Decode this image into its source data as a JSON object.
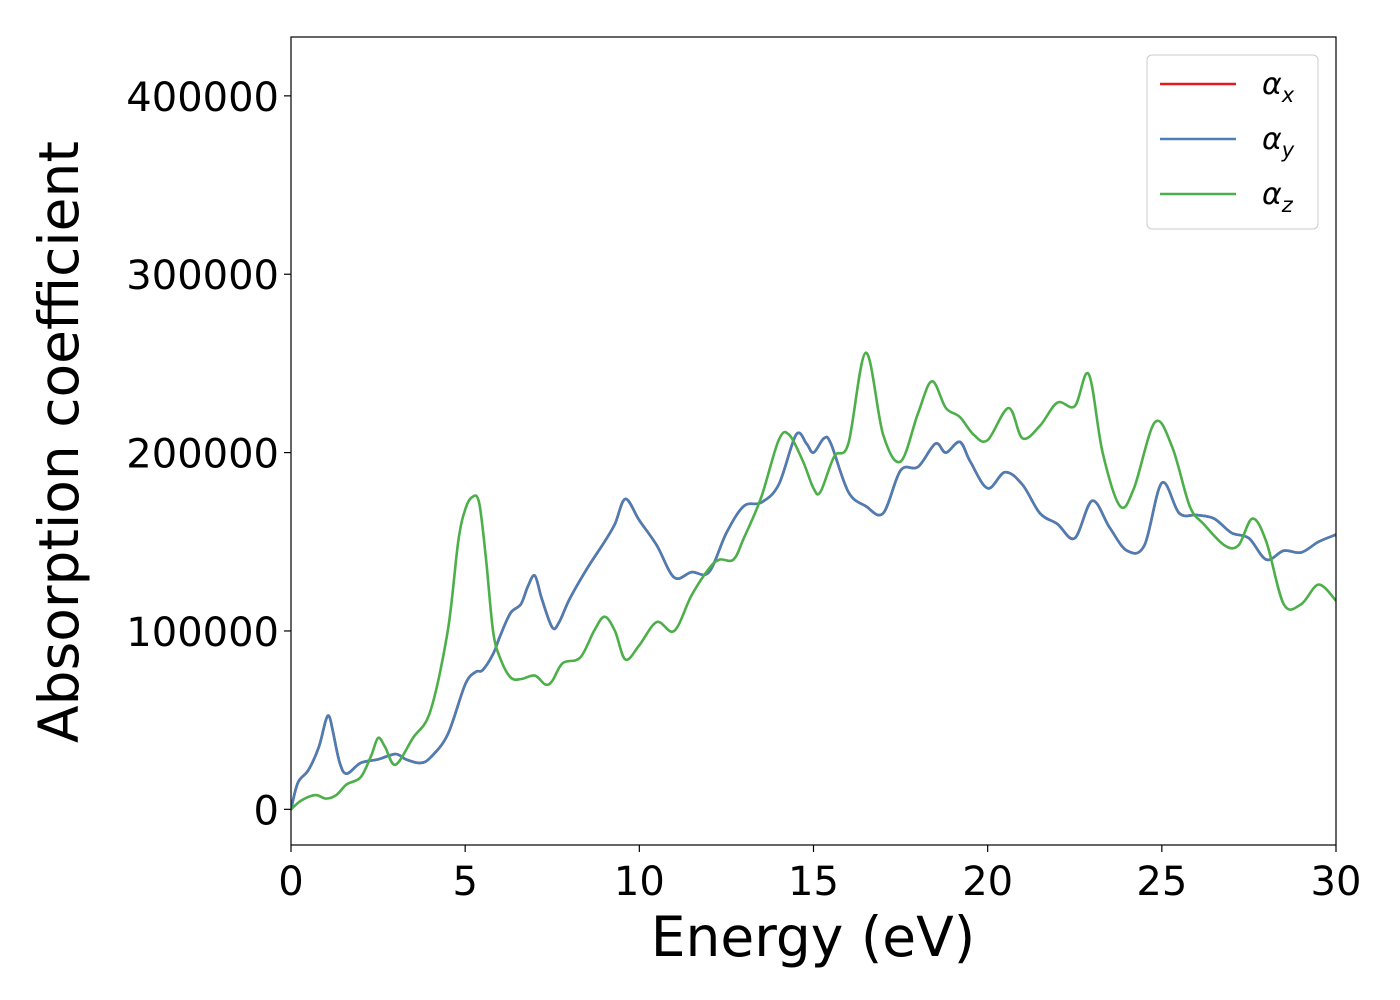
{
  "chart_data": {
    "type": "line",
    "title": "",
    "xlabel": "Energy (eV)",
    "ylabel": "Absorption coefficient",
    "xlim": [
      0,
      30
    ],
    "ylim": [
      -20000,
      433000
    ],
    "xticks": [
      0,
      5,
      10,
      15,
      20,
      25,
      30
    ],
    "xtick_labels": [
      "0",
      "5",
      "10",
      "15",
      "20",
      "25",
      "30"
    ],
    "yticks": [
      0,
      100000,
      200000,
      300000,
      400000
    ],
    "ytick_labels": [
      "0",
      "100000",
      "200000",
      "300000",
      "400000"
    ],
    "grid": false,
    "legend_position": "top-right",
    "series": [
      {
        "name": "αx",
        "label_symbol": "α",
        "label_sub": "x",
        "color": "#e41a1c",
        "x": [
          0,
          0.2,
          0.5,
          0.8,
          1.0,
          1.1,
          1.2,
          1.4,
          1.6,
          2.0,
          2.5,
          3.0,
          3.3,
          3.7,
          4.0,
          4.5,
          5.0,
          5.3,
          5.5,
          5.8,
          6.0,
          6.3,
          6.6,
          6.8,
          7.0,
          7.2,
          7.5,
          7.7,
          8.0,
          8.5,
          9.0,
          9.3,
          9.6,
          10.0,
          10.5,
          11.0,
          11.5,
          12.0,
          12.5,
          13.0,
          13.5,
          14.0,
          14.5,
          14.8,
          15.0,
          15.3,
          15.5,
          16.0,
          16.5,
          17.0,
          17.5,
          18.0,
          18.5,
          18.8,
          19.2,
          19.5,
          20.0,
          20.5,
          21.0,
          21.5,
          22.0,
          22.5,
          23.0,
          23.5,
          24.0,
          24.5,
          25.0,
          25.5,
          26.0,
          26.5,
          27.0,
          27.5,
          28.0,
          28.5,
          29.0,
          29.5,
          30.0
        ],
        "y": [
          0,
          15000,
          22000,
          35000,
          50000,
          52000,
          44000,
          26000,
          20000,
          26000,
          28000,
          31000,
          28000,
          26000,
          29000,
          42000,
          70000,
          77000,
          78000,
          87000,
          97000,
          110000,
          115000,
          125000,
          131000,
          118000,
          102000,
          105000,
          118000,
          135000,
          150000,
          160000,
          174000,
          162000,
          148000,
          130000,
          133000,
          133000,
          155000,
          170000,
          172000,
          182000,
          210000,
          205000,
          200000,
          208000,
          205000,
          178000,
          170000,
          166000,
          190000,
          192000,
          205000,
          200000,
          206000,
          195000,
          180000,
          189000,
          182000,
          166000,
          160000,
          152000,
          173000,
          158000,
          145000,
          148000,
          183000,
          166000,
          165000,
          163000,
          155000,
          152000,
          140000,
          145000,
          144000,
          150000,
          154000
        ]
      },
      {
        "name": "αy",
        "label_symbol": "α",
        "label_sub": "y",
        "color": "#4a7eb4",
        "x": [
          0,
          0.2,
          0.5,
          0.8,
          1.0,
          1.1,
          1.2,
          1.4,
          1.6,
          2.0,
          2.5,
          3.0,
          3.3,
          3.7,
          4.0,
          4.5,
          5.0,
          5.3,
          5.5,
          5.8,
          6.0,
          6.3,
          6.6,
          6.8,
          7.0,
          7.2,
          7.5,
          7.7,
          8.0,
          8.5,
          9.0,
          9.3,
          9.6,
          10.0,
          10.5,
          11.0,
          11.5,
          12.0,
          12.5,
          13.0,
          13.5,
          14.0,
          14.5,
          14.8,
          15.0,
          15.3,
          15.5,
          16.0,
          16.5,
          17.0,
          17.5,
          18.0,
          18.5,
          18.8,
          19.2,
          19.5,
          20.0,
          20.5,
          21.0,
          21.5,
          22.0,
          22.5,
          23.0,
          23.5,
          24.0,
          24.5,
          25.0,
          25.5,
          26.0,
          26.5,
          27.0,
          27.5,
          28.0,
          28.5,
          29.0,
          29.5,
          30.0
        ],
        "y": [
          0,
          15000,
          22000,
          35000,
          50000,
          52000,
          44000,
          26000,
          20000,
          26000,
          28000,
          31000,
          28000,
          26000,
          29000,
          42000,
          70000,
          77000,
          78000,
          87000,
          97000,
          110000,
          115000,
          125000,
          131000,
          118000,
          102000,
          105000,
          118000,
          135000,
          150000,
          160000,
          174000,
          162000,
          148000,
          130000,
          133000,
          133000,
          155000,
          170000,
          172000,
          182000,
          210000,
          205000,
          200000,
          208000,
          205000,
          178000,
          170000,
          166000,
          190000,
          192000,
          205000,
          200000,
          206000,
          195000,
          180000,
          189000,
          182000,
          166000,
          160000,
          152000,
          173000,
          158000,
          145000,
          148000,
          183000,
          166000,
          165000,
          163000,
          155000,
          152000,
          140000,
          145000,
          144000,
          150000,
          154000
        ]
      },
      {
        "name": "αz",
        "label_symbol": "α",
        "label_sub": "z",
        "color": "#4daf4a",
        "x": [
          0,
          0.3,
          0.7,
          1.0,
          1.3,
          1.6,
          2.0,
          2.3,
          2.5,
          2.7,
          3.0,
          3.5,
          4.0,
          4.5,
          4.8,
          5.0,
          5.2,
          5.4,
          5.6,
          5.8,
          6.0,
          6.3,
          6.6,
          7.0,
          7.3,
          7.5,
          7.8,
          8.3,
          8.7,
          9.0,
          9.3,
          9.6,
          10.0,
          10.5,
          11.0,
          11.5,
          12.0,
          12.3,
          12.7,
          13.0,
          13.5,
          14.0,
          14.3,
          14.7,
          15.0,
          15.2,
          15.6,
          16.0,
          16.5,
          17.0,
          17.5,
          18.0,
          18.4,
          18.8,
          19.2,
          19.6,
          20.0,
          20.6,
          21.0,
          21.5,
          22.0,
          22.5,
          22.9,
          23.3,
          23.8,
          24.2,
          24.8,
          25.3,
          25.8,
          26.2,
          26.8,
          27.2,
          27.6,
          28.0,
          28.5,
          29.0,
          29.5,
          30.0
        ],
        "y": [
          0,
          5000,
          8000,
          6000,
          8000,
          14000,
          18000,
          30000,
          40000,
          35000,
          25000,
          40000,
          55000,
          100000,
          150000,
          168000,
          175000,
          172000,
          140000,
          100000,
          85000,
          74000,
          73000,
          75000,
          70000,
          72000,
          82000,
          85000,
          100000,
          108000,
          100000,
          84000,
          92000,
          105000,
          100000,
          120000,
          135000,
          140000,
          140000,
          152000,
          175000,
          207000,
          210000,
          195000,
          180000,
          178000,
          198000,
          205000,
          256000,
          210000,
          195000,
          222000,
          240000,
          225000,
          220000,
          210000,
          207000,
          225000,
          208000,
          215000,
          228000,
          226000,
          244000,
          200000,
          170000,
          180000,
          217000,
          203000,
          170000,
          160000,
          148000,
          148000,
          163000,
          150000,
          115000,
          115000,
          126000,
          117000
        ]
      }
    ]
  }
}
